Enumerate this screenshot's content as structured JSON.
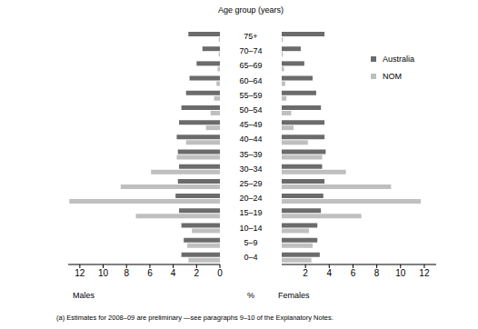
{
  "chart_data": [
    {
      "type": "bar",
      "orientation": "horizontal",
      "ylabel": "Age group (years)",
      "xlabel": "Males",
      "annotations": [
        "%",
        "(a) Estimates for 2008–09 are preliminary —see paragraphs 9–10 of the Explanatory Notes."
      ],
      "categories": [
        "0–4",
        "5–9",
        "10–14",
        "15–19",
        "20–24",
        "25–29",
        "30–34",
        "35–39",
        "40–44",
        "45–49",
        "50–54",
        "55–59",
        "60–64",
        "65–69",
        "70–74",
        "75+"
      ],
      "series": [
        {
          "name": "Australia",
          "color": "#6b6b6b",
          "values": [
            3.3,
            3.1,
            3.3,
            3.5,
            3.8,
            3.6,
            3.5,
            3.6,
            3.7,
            3.5,
            3.3,
            2.9,
            2.6,
            2.0,
            1.5,
            2.7
          ]
        },
        {
          "name": "NOM",
          "color": "#bfbfbf",
          "values": [
            2.7,
            2.8,
            2.4,
            7.2,
            12.9,
            8.5,
            5.9,
            3.7,
            2.9,
            1.2,
            0.8,
            0.5,
            0.3,
            0.2,
            0.1,
            0.1
          ]
        }
      ],
      "xlim": [
        0,
        13
      ],
      "xticks": [
        0,
        2,
        4,
        6,
        8,
        10,
        12
      ]
    },
    {
      "type": "bar",
      "orientation": "horizontal",
      "xlabel": "Females",
      "legend": "upper right",
      "categories": [
        "0–4",
        "5–9",
        "10–14",
        "15–19",
        "20–24",
        "25–29",
        "30–34",
        "35–39",
        "40–44",
        "45–49",
        "50–54",
        "55–59",
        "60–64",
        "65–69",
        "70–74",
        "75+"
      ],
      "series": [
        {
          "name": "Australia",
          "color": "#6b6b6b",
          "values": [
            3.2,
            3.0,
            3.0,
            3.3,
            3.5,
            3.6,
            3.4,
            3.7,
            3.6,
            3.6,
            3.3,
            2.9,
            2.6,
            1.9,
            1.6,
            3.6
          ]
        },
        {
          "name": "NOM",
          "color": "#bfbfbf",
          "values": [
            2.5,
            2.6,
            2.3,
            6.7,
            11.7,
            9.2,
            5.4,
            3.4,
            2.2,
            1.0,
            0.8,
            0.4,
            0.3,
            0.2,
            0.1,
            0.1
          ]
        }
      ],
      "xlim": [
        0,
        13
      ],
      "xticks": [
        0,
        2,
        4,
        6,
        8,
        10,
        12
      ]
    }
  ]
}
